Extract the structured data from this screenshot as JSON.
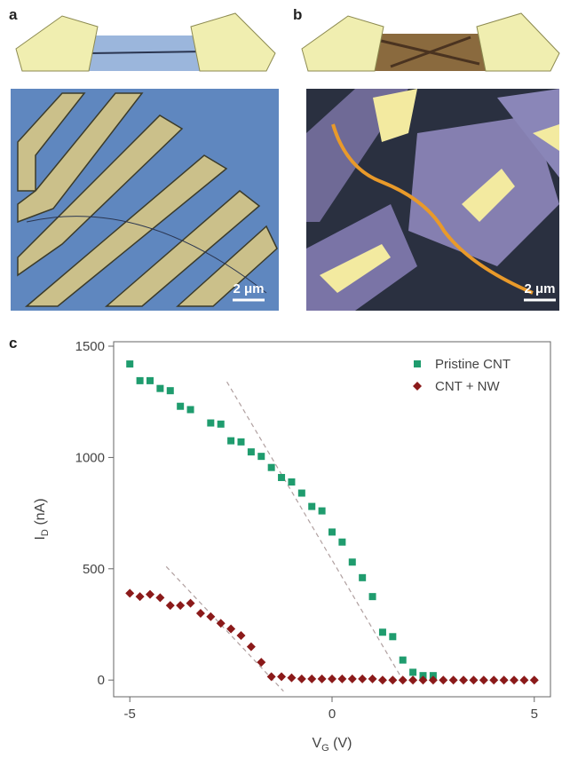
{
  "panels": [
    {
      "label": "a",
      "scale_bar": "2 μm"
    },
    {
      "label": "b",
      "scale_bar": "2 μm"
    },
    {
      "label": "c"
    }
  ],
  "chart_data": {
    "type": "scatter",
    "xlabel": {
      "main": "V",
      "sub": "G",
      "unit": " (V)"
    },
    "ylabel": {
      "main": "I",
      "sub": "D",
      "unit": " (nA)"
    },
    "xlim": [
      -5.4,
      5.4
    ],
    "ylim": [
      -75,
      1520
    ],
    "xticks": [
      -5,
      0,
      5
    ],
    "yticks": [
      0,
      500,
      1000,
      1500
    ],
    "legend": "upper right",
    "series": [
      {
        "name": "Pristine CNT",
        "color": "#1f9c6e",
        "marker": "square",
        "x": [
          -5,
          -4.75,
          -4.5,
          -4.25,
          -4,
          -3.75,
          -3.5,
          -3,
          -2.75,
          -2.5,
          -2.25,
          -2,
          -1.75,
          -1.5,
          -1.25,
          -1,
          -0.75,
          -0.5,
          -0.25,
          0,
          0.25,
          0.5,
          0.75,
          1,
          1.25,
          1.5,
          1.75,
          2,
          2.25,
          2.5
        ],
        "values": [
          1420,
          1345,
          1345,
          1310,
          1300,
          1230,
          1215,
          1155,
          1150,
          1075,
          1070,
          1025,
          1005,
          955,
          910,
          890,
          840,
          780,
          760,
          665,
          620,
          530,
          460,
          375,
          215,
          195,
          90,
          35,
          20,
          20
        ],
        "fit": {
          "x": [
            -2.6,
            1.75
          ],
          "y": [
            1340,
            0
          ]
        }
      },
      {
        "name": "CNT + NW",
        "color": "#8b1a1a",
        "marker": "diamond",
        "x": [
          -5,
          -4.75,
          -4.5,
          -4.25,
          -4,
          -3.75,
          -3.5,
          -3.25,
          -3,
          -2.75,
          -2.5,
          -2.25,
          -2,
          -1.75,
          -1.5,
          -1.25,
          -1,
          -0.75,
          -0.5,
          -0.25,
          0,
          0.25,
          0.5,
          0.75,
          1,
          1.25,
          1.5,
          1.75,
          2,
          2.25,
          2.5,
          2.75,
          3,
          3.25,
          3.5,
          3.75,
          4,
          4.25,
          4.5,
          4.75,
          5
        ],
        "values": [
          390,
          375,
          385,
          370,
          335,
          335,
          345,
          300,
          285,
          255,
          230,
          200,
          150,
          80,
          15,
          15,
          10,
          5,
          5,
          5,
          5,
          5,
          5,
          5,
          5,
          0,
          0,
          0,
          0,
          0,
          0,
          0,
          0,
          0,
          0,
          0,
          0,
          0,
          0,
          0,
          0
        ],
        "fit": {
          "x": [
            -4.1,
            -1.2
          ],
          "y": [
            510,
            -50
          ]
        }
      }
    ]
  }
}
